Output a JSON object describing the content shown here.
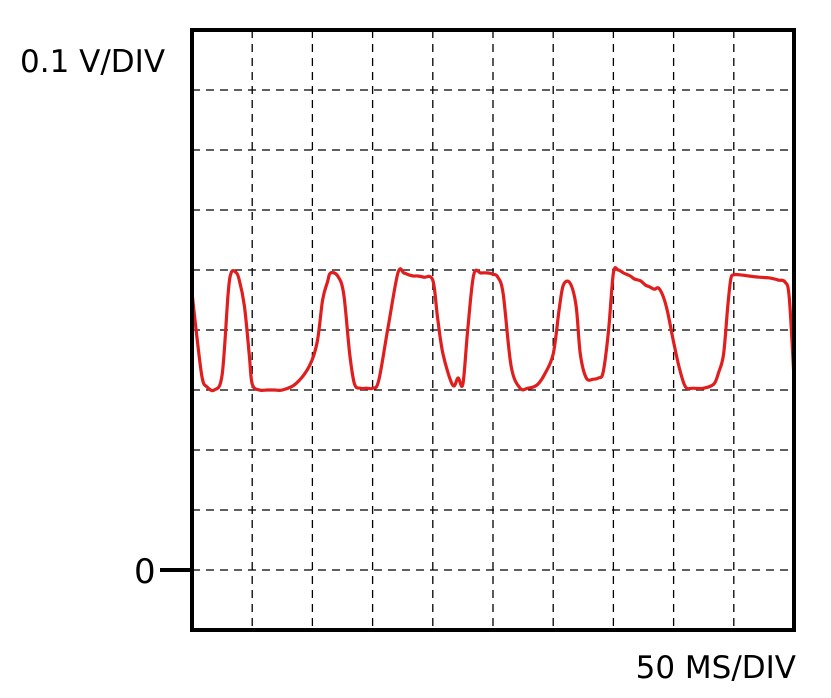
{
  "chart_data": {
    "type": "line",
    "title": "",
    "ylabel": "0.1 V/DIV",
    "xlabel": "50 MS/DIV",
    "zero_label": "0",
    "grid": true,
    "grid_divisions": {
      "x": 10,
      "y": 10
    },
    "xlim": [
      0,
      10
    ],
    "ylim": [
      0,
      10
    ],
    "series": [
      {
        "color": "#e01e1e",
        "x": [
          0.0,
          0.08,
          0.17,
          0.25,
          0.37,
          0.5,
          0.6,
          0.65,
          0.72,
          0.78,
          0.87,
          0.95,
          1.0,
          1.12,
          1.25,
          1.37,
          1.5,
          1.72,
          1.95,
          2.08,
          2.17,
          2.25,
          2.3,
          2.42,
          2.52,
          2.62,
          2.7,
          2.8,
          2.9,
          3.0,
          3.1,
          3.25,
          3.42,
          3.52,
          3.6,
          3.68,
          3.75,
          3.85,
          4.0,
          4.08,
          4.17,
          4.33,
          4.42,
          4.5,
          4.58,
          4.68,
          4.8,
          4.92,
          5.0,
          5.08,
          5.17,
          5.3,
          5.45,
          5.58,
          5.67,
          5.75,
          5.85,
          6.0,
          6.1,
          6.17,
          6.28,
          6.38,
          6.45,
          6.55,
          6.67,
          6.75,
          6.83,
          6.92,
          7.0,
          7.08,
          7.17,
          7.28,
          7.35,
          7.45,
          7.53,
          7.6,
          7.68,
          7.75,
          7.83,
          7.9,
          8.0,
          8.1,
          8.2,
          8.33,
          8.5,
          8.67,
          8.75,
          8.83,
          8.9,
          8.95,
          9.0,
          9.1,
          9.25,
          9.42,
          9.58,
          9.68,
          9.75,
          9.85,
          9.92,
          10.0
        ],
        "y": [
          5.62,
          4.9,
          4.2,
          4.05,
          4.0,
          4.25,
          5.6,
          5.95,
          5.97,
          5.85,
          5.4,
          4.6,
          4.1,
          4.0,
          4.0,
          4.0,
          4.0,
          4.1,
          4.4,
          4.8,
          5.5,
          5.8,
          5.95,
          5.9,
          5.6,
          4.6,
          4.1,
          4.03,
          4.03,
          4.03,
          4.15,
          5.0,
          5.95,
          5.95,
          5.92,
          5.9,
          5.9,
          5.88,
          5.83,
          5.2,
          4.6,
          4.08,
          4.2,
          4.1,
          5.0,
          5.92,
          5.95,
          5.95,
          5.93,
          5.88,
          5.6,
          4.4,
          4.03,
          4.03,
          4.05,
          4.1,
          4.25,
          4.6,
          5.35,
          5.75,
          5.78,
          5.4,
          4.6,
          4.2,
          4.18,
          4.2,
          4.3,
          5.0,
          5.95,
          6.0,
          5.95,
          5.9,
          5.85,
          5.82,
          5.75,
          5.72,
          5.68,
          5.7,
          5.55,
          5.3,
          4.8,
          4.35,
          4.05,
          4.03,
          4.03,
          4.1,
          4.3,
          4.6,
          5.4,
          5.85,
          5.92,
          5.92,
          5.9,
          5.88,
          5.87,
          5.85,
          5.83,
          5.8,
          5.55,
          4.2
        ]
      }
    ]
  }
}
